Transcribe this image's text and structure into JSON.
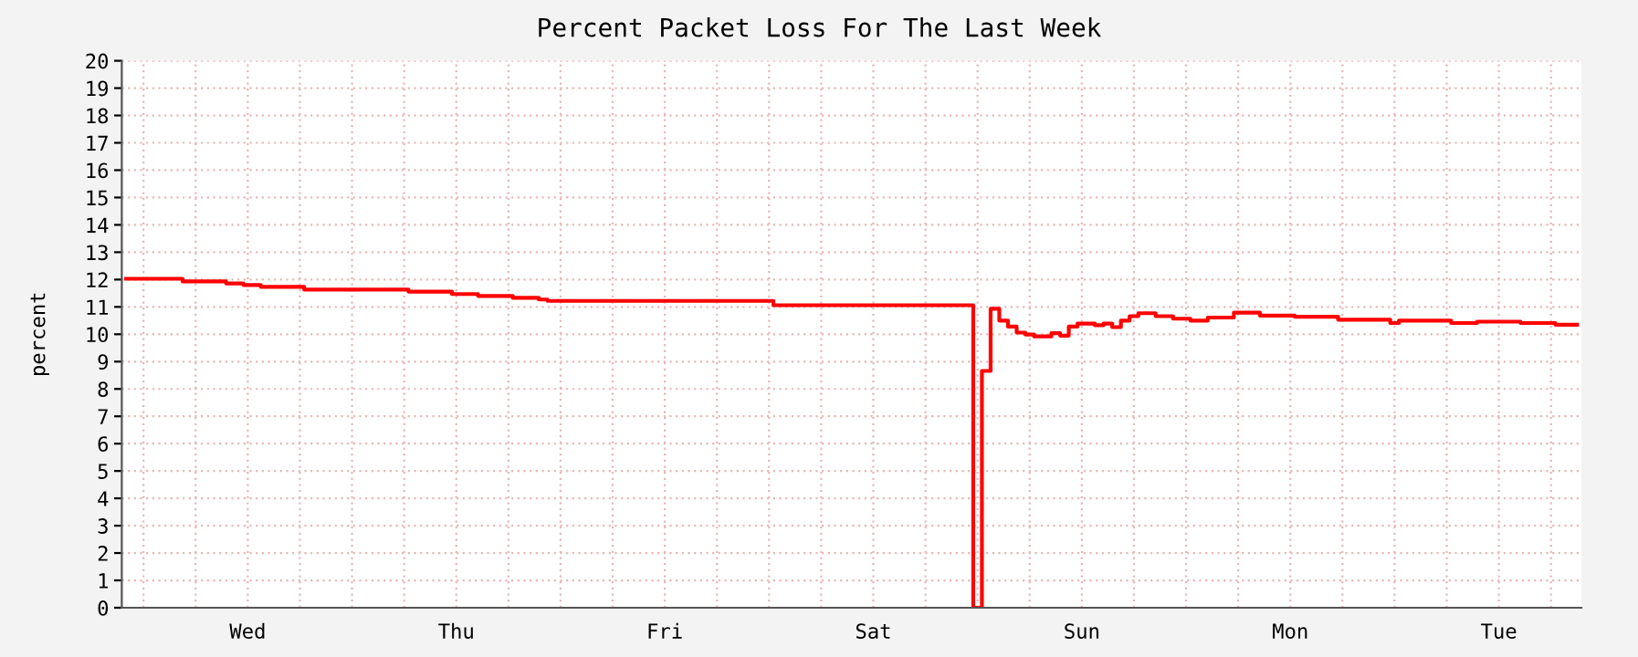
{
  "chart_data": {
    "type": "step",
    "title": "Percent Packet Loss For The Last Week",
    "ylabel": "percent",
    "categories": [
      null,
      null,
      null,
      null,
      null,
      null,
      null,
      null,
      null,
      null,
      null,
      null,
      null,
      null,
      "Wed",
      null,
      null,
      null,
      null,
      null,
      null,
      null,
      null,
      null,
      null,
      null,
      null,
      null,
      null,
      null,
      null,
      null,
      null,
      null,
      null,
      null,
      null,
      null,
      "Thu",
      null,
      null,
      null,
      null,
      null,
      null,
      null,
      null,
      null,
      null,
      null,
      null,
      null,
      null,
      null,
      null,
      null,
      null,
      null,
      null,
      null,
      null,
      null,
      "Fri",
      null,
      null,
      null,
      null,
      null,
      null,
      null,
      null,
      null,
      null,
      null,
      null,
      null,
      null,
      null,
      null,
      null,
      null,
      null,
      null,
      null,
      null,
      null,
      "Sat",
      null,
      null,
      null,
      null,
      null,
      null,
      null,
      null,
      null,
      null,
      null,
      null,
      null,
      null,
      null,
      null,
      null,
      null,
      null,
      null,
      null,
      null,
      null,
      "Sun",
      null,
      null,
      null,
      null,
      null,
      null,
      null,
      null,
      null,
      null,
      null,
      null,
      null,
      null,
      null,
      null,
      null,
      null,
      null,
      null,
      null,
      null,
      null,
      "Mon",
      null,
      null,
      null,
      null,
      null,
      null,
      null,
      null,
      null,
      null,
      null,
      null,
      null,
      null,
      null,
      null,
      null,
      null,
      null,
      null,
      null,
      null,
      null,
      "Tue",
      null,
      null,
      null,
      null,
      null,
      null,
      null,
      null,
      null
    ],
    "series": [
      {
        "color": "#ff0000",
        "values": [
          12.03,
          12.03,
          12.03,
          12.03,
          12.03,
          12.03,
          12.03,
          11.93,
          11.93,
          11.93,
          11.93,
          11.93,
          11.86,
          11.86,
          11.8,
          11.8,
          11.73,
          11.73,
          11.73,
          11.73,
          11.73,
          11.63,
          11.63,
          11.63,
          11.63,
          11.63,
          11.63,
          11.63,
          11.63,
          11.63,
          11.63,
          11.63,
          11.63,
          11.56,
          11.56,
          11.56,
          11.56,
          11.56,
          11.47,
          11.47,
          11.47,
          11.4,
          11.4,
          11.4,
          11.4,
          11.33,
          11.33,
          11.33,
          11.27,
          11.22,
          11.22,
          11.22,
          11.22,
          11.22,
          11.22,
          11.22,
          11.22,
          11.22,
          11.22,
          11.22,
          11.22,
          11.22,
          11.22,
          11.22,
          11.22,
          11.22,
          11.22,
          11.22,
          11.22,
          11.22,
          11.22,
          11.22,
          11.22,
          11.22,
          11.22,
          11.06,
          11.06,
          11.06,
          11.06,
          11.06,
          11.06,
          11.06,
          11.06,
          11.06,
          11.06,
          11.06,
          11.06,
          11.06,
          11.06,
          11.06,
          11.06,
          11.06,
          11.06,
          11.06,
          11.06,
          11.06,
          11.06,
          11.06,
          0,
          8.66,
          10.93,
          10.5,
          10.28,
          10.06,
          9.99,
          9.92,
          9.92,
          10.04,
          9.95,
          10.28,
          10.39,
          10.39,
          10.33,
          10.39,
          10.26,
          10.5,
          10.66,
          10.77,
          10.77,
          10.66,
          10.66,
          10.57,
          10.57,
          10.5,
          10.5,
          10.61,
          10.61,
          10.61,
          10.79,
          10.79,
          10.79,
          10.68,
          10.68,
          10.68,
          10.68,
          10.64,
          10.64,
          10.64,
          10.64,
          10.64,
          10.53,
          10.53,
          10.53,
          10.53,
          10.53,
          10.53,
          10.41,
          10.5,
          10.5,
          10.5,
          10.5,
          10.5,
          10.5,
          10.41,
          10.41,
          10.41,
          10.46,
          10.46,
          10.46,
          10.46,
          10.46,
          10.41,
          10.41,
          10.41,
          10.41,
          10.35,
          10.35,
          10.35
        ]
      }
    ],
    "ylim": [
      0,
      20
    ],
    "yticks": [
      0,
      1,
      2,
      3,
      4,
      5,
      6,
      7,
      8,
      9,
      10,
      11,
      12,
      13,
      14,
      15,
      16,
      17,
      18,
      19,
      20
    ],
    "grid": true,
    "marker": "none",
    "line_style": "solid",
    "legend": false
  }
}
